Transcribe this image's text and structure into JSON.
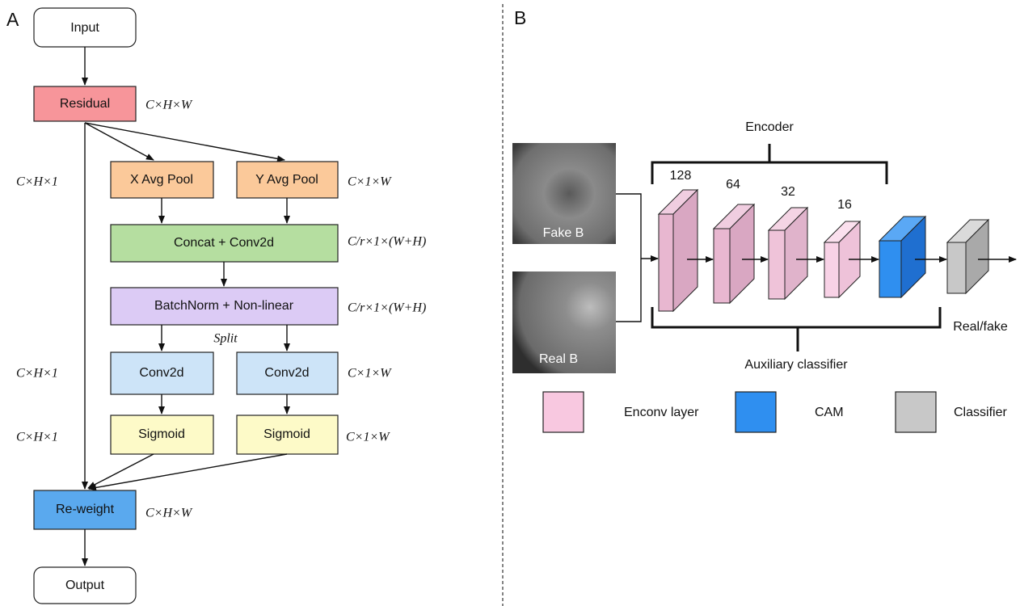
{
  "panel_a": {
    "label": "A",
    "nodes": [
      "Input",
      "Residual",
      "X Avg Pool",
      "Y Avg Pool",
      "Concat + Conv2d",
      "BatchNorm + Non-linear",
      "Conv2d",
      "Conv2d",
      "Sigmoid",
      "Sigmoid",
      "Re-weight",
      "Output"
    ],
    "dims": [
      "C×H×W",
      "C×H×1",
      "C×1×W",
      "C/r×1×(W+H)",
      "C/r×1×(W+H)",
      "C×H×1",
      "C×1×W",
      "C×H×1",
      "C×1×W",
      "C×H×W"
    ],
    "split": "Split"
  },
  "panel_b": {
    "label": "B",
    "images": [
      "Fake B",
      "Real B"
    ],
    "encoder": "Encoder",
    "channels": [
      128,
      64,
      32,
      16
    ],
    "auxiliary": "Auxiliary classifier",
    "output": "Real/fake",
    "legend": [
      "Enconv layer",
      "CAM",
      "Classifier"
    ]
  }
}
